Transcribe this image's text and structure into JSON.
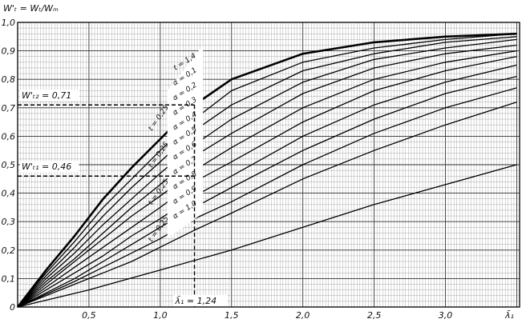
{
  "chart_data": {
    "type": "line",
    "ylabel": "W'ₜ = Wₜ/Wₘ",
    "xlabel": "λ̄₁",
    "xlim": [
      0,
      3.52
    ],
    "ylim": [
      0,
      1.0
    ],
    "xticks": [
      "0,5",
      "1,0",
      "1,5",
      "2,0",
      "2,5",
      "3,0"
    ],
    "yticks": [
      "0",
      "0,1",
      "0,2",
      "0,3",
      "0,4",
      "0,5",
      "0,6",
      "0,7",
      "0,8",
      "0,9",
      "1,0"
    ],
    "grid": true,
    "series": [
      {
        "name": "t = 1,4",
        "x": [
          0,
          0.2,
          0.4,
          0.6,
          0.8,
          1.0,
          1.24,
          1.5,
          2.0,
          2.5,
          3.0,
          3.5
        ],
        "values": [
          0,
          0.13,
          0.25,
          0.38,
          0.49,
          0.59,
          0.71,
          0.8,
          0.89,
          0.93,
          0.95,
          0.96
        ]
      },
      {
        "name": "α = 0,1",
        "x": [
          0,
          0.2,
          0.4,
          0.6,
          0.8,
          1.0,
          1.24,
          1.5,
          2.0,
          2.5,
          3.0,
          3.5
        ],
        "values": [
          0,
          0.12,
          0.23,
          0.35,
          0.45,
          0.55,
          0.66,
          0.76,
          0.86,
          0.91,
          0.94,
          0.96
        ]
      },
      {
        "name": "α = 0,2",
        "x": [
          0,
          0.2,
          0.4,
          0.6,
          0.8,
          1.0,
          1.24,
          1.5,
          2.0,
          2.5,
          3.0,
          3.5
        ],
        "values": [
          0,
          0.11,
          0.21,
          0.32,
          0.42,
          0.51,
          0.62,
          0.71,
          0.83,
          0.89,
          0.93,
          0.95
        ]
      },
      {
        "name": "α = 0,3",
        "x": [
          0,
          0.2,
          0.4,
          0.6,
          0.8,
          1.0,
          1.24,
          1.5,
          2.0,
          2.5,
          3.0,
          3.5
        ],
        "values": [
          0,
          0.1,
          0.19,
          0.29,
          0.38,
          0.47,
          0.57,
          0.66,
          0.79,
          0.87,
          0.91,
          0.94
        ]
      },
      {
        "name": "α = 0,4",
        "x": [
          0,
          0.2,
          0.4,
          0.6,
          0.8,
          1.0,
          1.24,
          1.5,
          2.0,
          2.5,
          3.0,
          3.5
        ],
        "values": [
          0,
          0.09,
          0.17,
          0.26,
          0.35,
          0.43,
          0.53,
          0.61,
          0.75,
          0.84,
          0.89,
          0.92
        ]
      },
      {
        "name": "α = 0,5",
        "x": [
          0,
          0.2,
          0.4,
          0.6,
          0.8,
          1.0,
          1.24,
          1.5,
          2.0,
          2.5,
          3.0,
          3.5
        ],
        "values": [
          0,
          0.08,
          0.16,
          0.24,
          0.32,
          0.39,
          0.48,
          0.56,
          0.7,
          0.8,
          0.86,
          0.9
        ]
      },
      {
        "name": "α = 0,6",
        "x": [
          0,
          0.2,
          0.4,
          0.6,
          0.8,
          1.0,
          1.24,
          1.5,
          2.0,
          2.5,
          3.0,
          3.5
        ],
        "values": [
          0,
          0.07,
          0.14,
          0.21,
          0.28,
          0.35,
          0.44,
          0.51,
          0.65,
          0.76,
          0.83,
          0.88
        ]
      },
      {
        "name": "α = 0,7",
        "x": [
          0,
          0.2,
          0.4,
          0.6,
          0.8,
          1.0,
          1.24,
          1.5,
          2.0,
          2.5,
          3.0,
          3.5
        ],
        "values": [
          0,
          0.06,
          0.12,
          0.18,
          0.25,
          0.31,
          0.39,
          0.46,
          0.6,
          0.71,
          0.79,
          0.85
        ]
      },
      {
        "name": "α = 0,8",
        "x": [
          0,
          0.2,
          0.4,
          0.6,
          0.8,
          1.0,
          1.24,
          1.5,
          2.0,
          2.5,
          3.0,
          3.5
        ],
        "values": [
          0,
          0.05,
          0.1,
          0.16,
          0.22,
          0.28,
          0.35,
          0.42,
          0.55,
          0.66,
          0.75,
          0.81
        ]
      },
      {
        "name": "α = 0,9",
        "x": [
          0,
          0.2,
          0.4,
          0.6,
          0.8,
          1.0,
          1.24,
          1.5,
          2.0,
          2.5,
          3.0,
          3.5
        ],
        "values": [
          0,
          0.045,
          0.09,
          0.14,
          0.19,
          0.24,
          0.31,
          0.37,
          0.5,
          0.61,
          0.7,
          0.77
        ]
      },
      {
        "name": "α = 1,0",
        "x": [
          0,
          0.2,
          0.4,
          0.6,
          0.8,
          1.0,
          1.24,
          1.5,
          2.0,
          2.5,
          3.0,
          3.5
        ],
        "values": [
          0,
          0.04,
          0.08,
          0.12,
          0.16,
          0.21,
          0.27,
          0.33,
          0.45,
          0.55,
          0.64,
          0.72
        ]
      },
      {
        "name": "",
        "x": [
          0,
          0.5,
          1.0,
          1.5,
          2.0,
          2.5,
          3.0,
          3.5
        ],
        "values": [
          0,
          0.06,
          0.13,
          0.2,
          0.28,
          0.36,
          0.43,
          0.5
        ]
      }
    ],
    "series_labels": [
      "t = 1,4",
      "α = 0,1",
      "α = 0,2",
      "α = 0,3",
      "α = 0,4",
      "α = 0,5",
      "α = 0,6",
      "α = 0,7",
      "α = 0,8",
      "α = 0,9",
      "α = 1,0"
    ],
    "t_labels": [
      "t = 0,25",
      "t = 0,25",
      "t = 0,25",
      "t = 0,25"
    ],
    "annotations": {
      "w2_label": "W'ₜ₂ = 0,71",
      "w2_value": 0.71,
      "w1_label": "W'ₜ₁ = 0,46",
      "w1_value": 0.46,
      "lambda_label": "λ̄₁ = 1,24",
      "lambda_value": 1.24
    }
  }
}
